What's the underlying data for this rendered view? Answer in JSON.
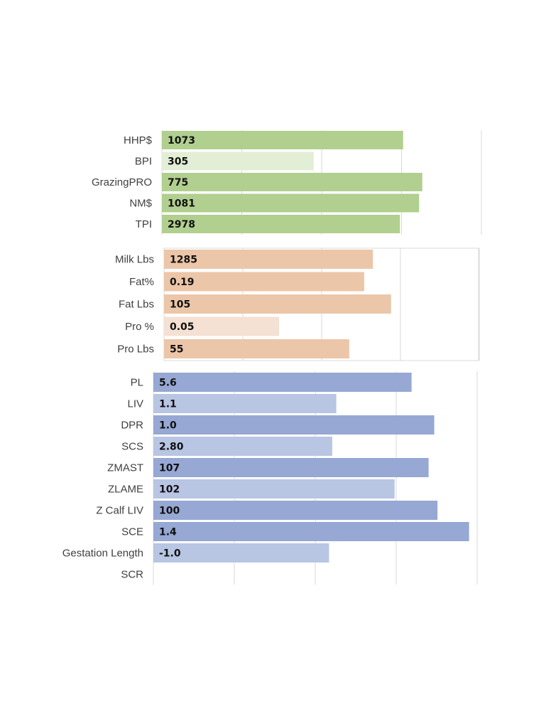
{
  "chart_data": [
    {
      "type": "bar",
      "orientation": "horizontal",
      "title": "",
      "xlabel": "",
      "ylabel": "",
      "grid": true,
      "xlim": [
        0,
        4
      ],
      "categories": [
        "HHP$",
        "BPI",
        "GrazingPRO",
        "NM$",
        "TPI"
      ],
      "values": [
        1073,
        305,
        775,
        1081,
        2978
      ],
      "value_labels": [
        "1073",
        "305",
        "775",
        "1081",
        "2978"
      ],
      "relative_lengths": [
        3.02,
        1.9,
        3.26,
        3.22,
        2.98
      ],
      "colors": [
        "#b1cf8f",
        "#e3eed6",
        "#b1cf8f",
        "#b1cf8f",
        "#b1cf8f"
      ]
    },
    {
      "type": "bar",
      "orientation": "horizontal",
      "title": "",
      "xlabel": "",
      "ylabel": "",
      "grid": true,
      "xlim": [
        0,
        4
      ],
      "categories": [
        "Milk Lbs",
        "Fat%",
        "Fat Lbs",
        "Pro %",
        "Pro Lbs"
      ],
      "values": [
        1285,
        0.19,
        105,
        0.05,
        55
      ],
      "value_labels": [
        "1285",
        "0.19",
        "105",
        "0.05",
        "55"
      ],
      "relative_lengths": [
        2.65,
        2.54,
        2.88,
        1.46,
        2.35
      ],
      "colors": [
        "#ecc6a8",
        "#ecc6a8",
        "#ecc6a8",
        "#f4e1d3",
        "#ecc6a8"
      ]
    },
    {
      "type": "bar",
      "orientation": "horizontal",
      "title": "",
      "xlabel": "",
      "ylabel": "",
      "grid": true,
      "xlim": [
        0,
        4
      ],
      "categories": [
        "PL",
        "LIV",
        "DPR",
        "SCS",
        "ZMAST",
        "ZLAME",
        "Z Calf LIV",
        "SCE",
        "Gestation Length",
        "SCR"
      ],
      "values": [
        5.6,
        1.1,
        1.0,
        2.8,
        107,
        102,
        100,
        1.4,
        -1.0,
        null
      ],
      "value_labels": [
        "5.6",
        "1.1",
        "1.0",
        "2.80",
        "107",
        "102",
        "100",
        "1.4",
        "-1.0",
        ""
      ],
      "relative_lengths": [
        3.19,
        2.26,
        3.47,
        2.21,
        3.4,
        2.98,
        3.51,
        3.9,
        2.17,
        0
      ],
      "colors": [
        "#96a8d3",
        "#b8c5e3",
        "#96a8d3",
        "#b8c5e3",
        "#96a8d3",
        "#b8c5e3",
        "#96a8d3",
        "#96a8d3",
        "#b8c5e3",
        "#b8c5e3"
      ]
    }
  ]
}
